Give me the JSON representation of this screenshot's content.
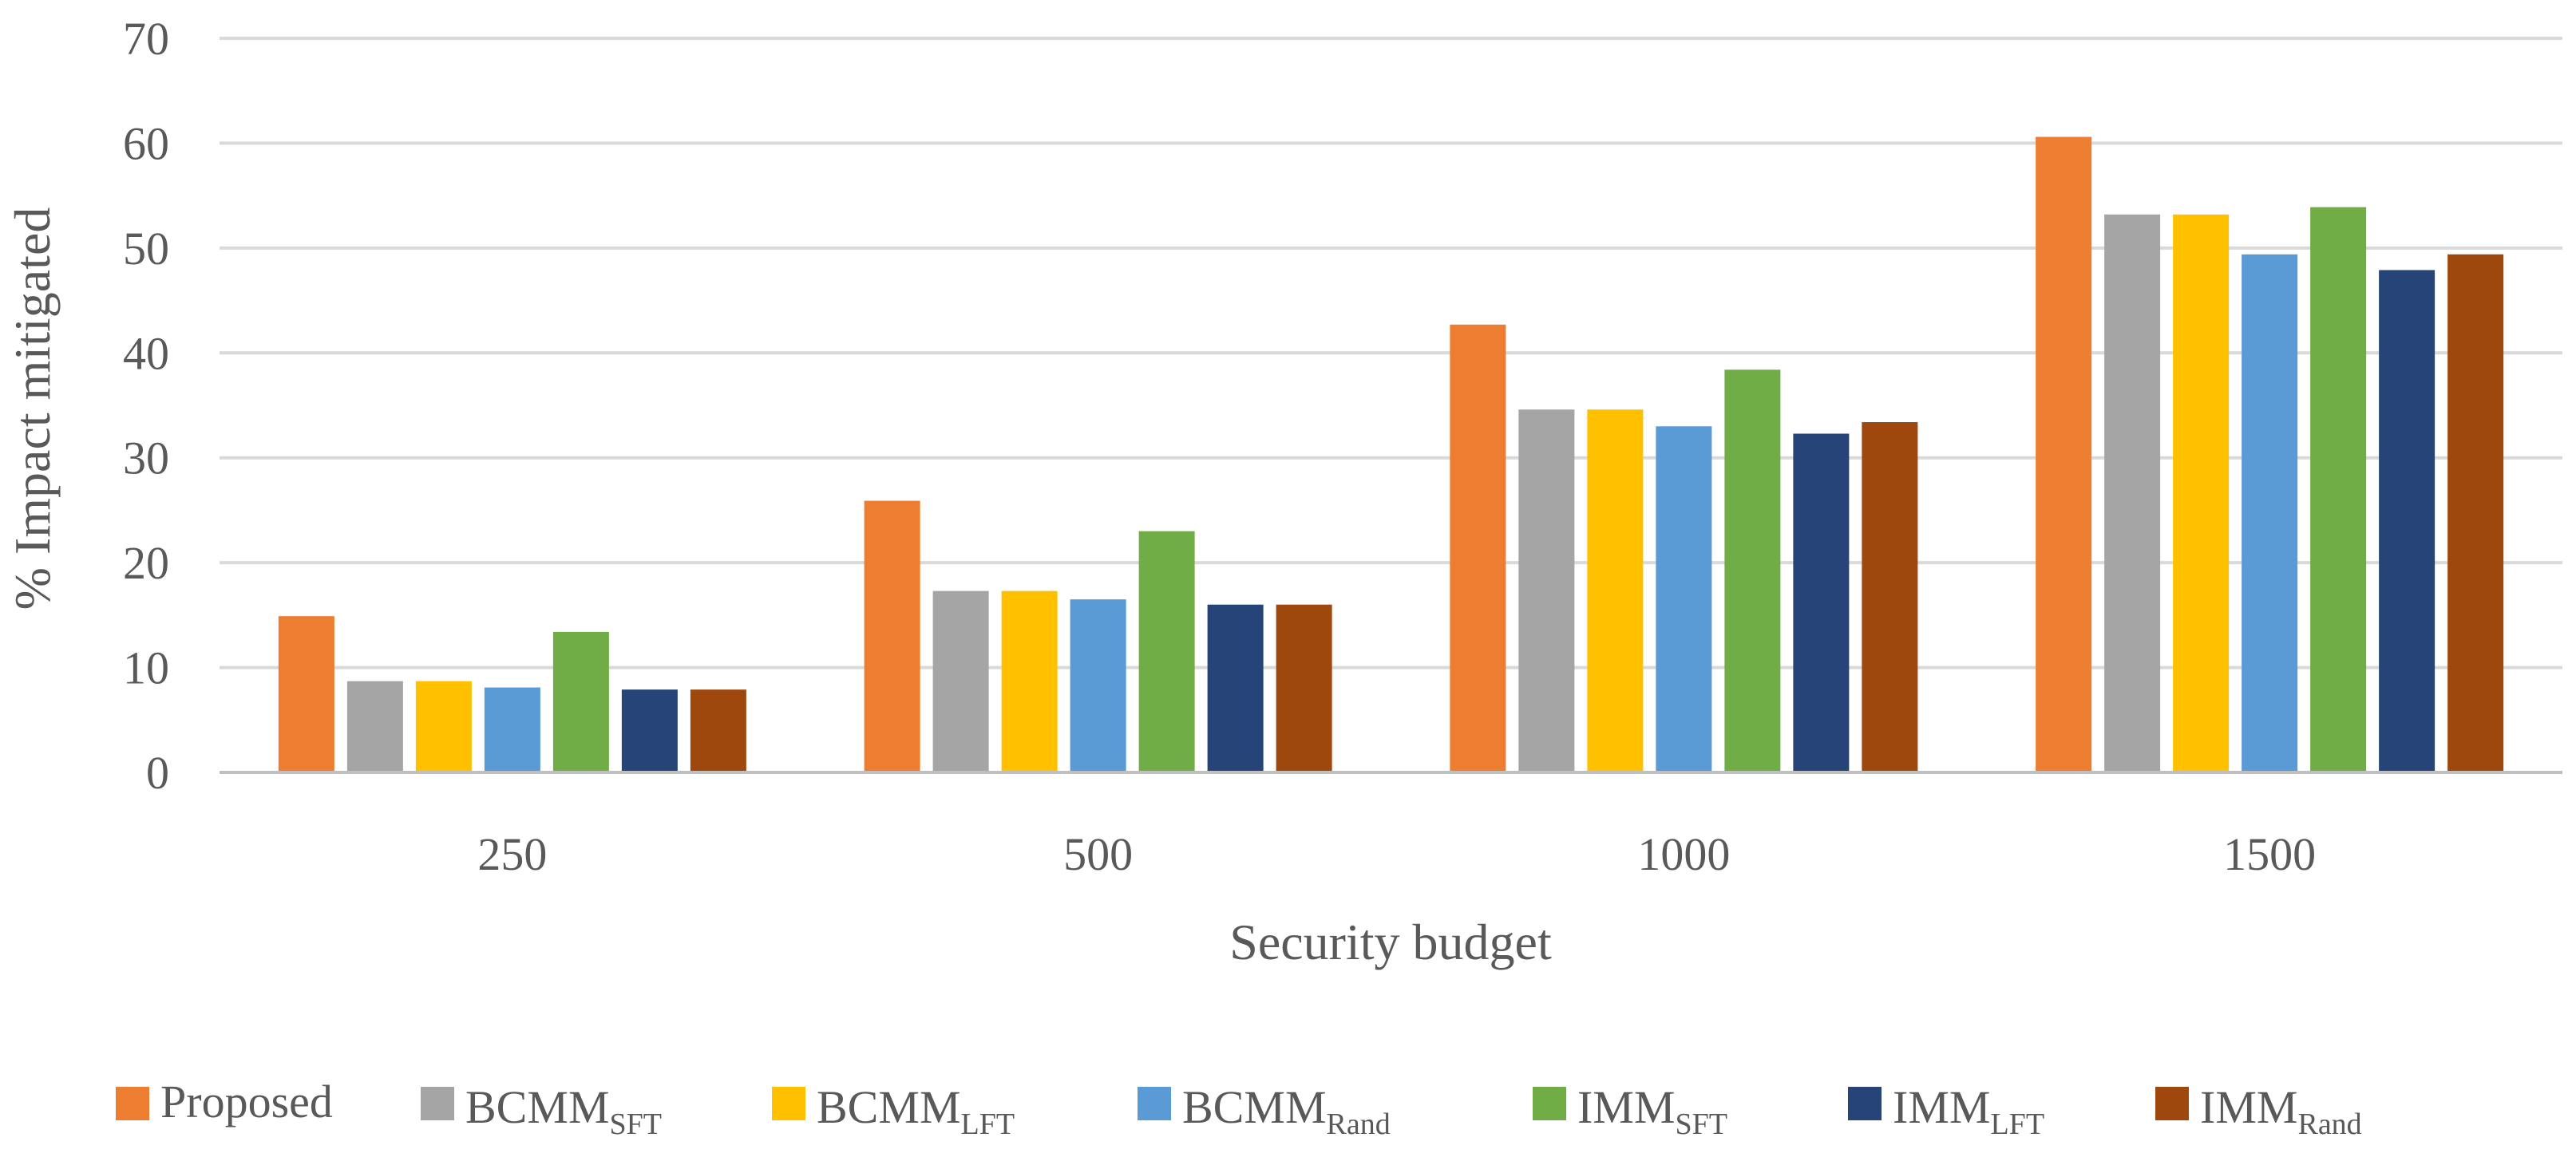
{
  "chart_data": {
    "type": "bar",
    "categories": [
      "250",
      "500",
      "1000",
      "1500"
    ],
    "xlabel": "Security budget",
    "ylabel": "% Impact mitigated",
    "ylim": [
      0,
      70
    ],
    "yticks": [
      0,
      10,
      20,
      30,
      40,
      50,
      60,
      70
    ],
    "grid": true,
    "legend_position": "bottom",
    "series": [
      {
        "name": "Proposed",
        "sub": "",
        "color": "#ED7D31",
        "values": [
          14.9,
          25.9,
          42.7,
          60.6
        ]
      },
      {
        "name": "BCMM",
        "sub": "SFT",
        "color": "#A5A5A5",
        "values": [
          8.7,
          17.3,
          34.6,
          53.2
        ]
      },
      {
        "name": "BCMM",
        "sub": "LFT",
        "color": "#FFC000",
        "values": [
          8.7,
          17.3,
          34.6,
          53.2
        ]
      },
      {
        "name": "BCMM",
        "sub": "Rand",
        "color": "#5B9BD5",
        "values": [
          8.1,
          16.5,
          33.0,
          49.4
        ]
      },
      {
        "name": "IMM",
        "sub": "SFT",
        "color": "#70AD47",
        "values": [
          13.4,
          23.0,
          38.4,
          53.9
        ]
      },
      {
        "name": "IMM",
        "sub": "LFT",
        "color": "#264478",
        "values": [
          7.9,
          16.0,
          32.3,
          47.9
        ]
      },
      {
        "name": "IMM",
        "sub": "Rand",
        "color": "#9E480E",
        "values": [
          7.9,
          16.0,
          33.4,
          49.4
        ]
      }
    ]
  }
}
